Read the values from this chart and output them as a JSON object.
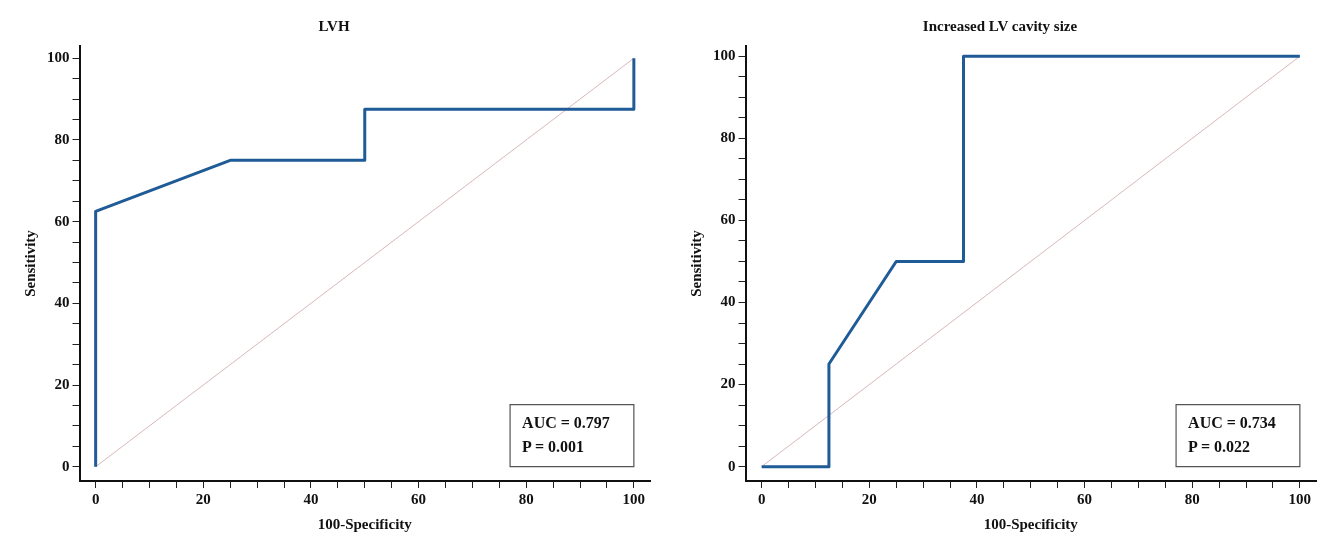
{
  "chart_data": [
    {
      "type": "line",
      "title": "LVH",
      "xlabel": "100-Specificity",
      "ylabel": "Sensitivity",
      "marker": "none",
      "line_style": "solid",
      "grid": false,
      "legend": false,
      "xlim": [
        -3,
        103
      ],
      "ylim": [
        -3.5,
        103
      ],
      "xticks": [
        0,
        {
          "value": 5,
          "label": null
        },
        {
          "value": 10,
          "label": null
        },
        {
          "value": 15,
          "label": null
        },
        20,
        {
          "value": 25,
          "label": null
        },
        {
          "value": 30,
          "label": null
        },
        {
          "value": 35,
          "label": null
        },
        40,
        {
          "value": 45,
          "label": null
        },
        {
          "value": 50,
          "label": null
        },
        {
          "value": 55,
          "label": null
        },
        60,
        {
          "value": 65,
          "label": null
        },
        {
          "value": 70,
          "label": null
        },
        {
          "value": 75,
          "label": null
        },
        80,
        {
          "value": 85,
          "label": null
        },
        {
          "value": 90,
          "label": null
        },
        {
          "value": 95,
          "label": null
        },
        100
      ],
      "yticks": [
        0,
        {
          "value": 5,
          "label": null
        },
        {
          "value": 10,
          "label": null
        },
        {
          "value": 15,
          "label": null
        },
        20,
        {
          "value": 25,
          "label": null
        },
        {
          "value": 30,
          "label": null
        },
        {
          "value": 35,
          "label": null
        },
        40,
        {
          "value": 45,
          "label": null
        },
        {
          "value": 50,
          "label": null
        },
        {
          "value": 55,
          "label": null
        },
        60,
        {
          "value": 65,
          "label": null
        },
        {
          "value": 70,
          "label": null
        },
        {
          "value": 75,
          "label": null
        },
        80,
        {
          "value": 85,
          "label": null
        },
        {
          "value": 90,
          "label": null
        },
        {
          "value": 95,
          "label": null
        },
        100
      ],
      "series": [
        {
          "color": "#1f5b96",
          "x": [
            0,
            0,
            25,
            50,
            50,
            100,
            100
          ],
          "values": [
            0,
            62.5,
            75,
            75,
            87.5,
            87.5,
            100
          ]
        },
        {
          "color": "#d9b8b8",
          "x": [
            0,
            100
          ],
          "values": [
            0,
            100
          ]
        }
      ],
      "annotations": [
        "AUC = 0.797",
        "P = 0.001"
      ]
    },
    {
      "type": "line",
      "title": "Increased LV cavity size",
      "xlabel": "100-Specificity",
      "ylabel": "Sensitivity",
      "marker": "none",
      "line_style": "solid",
      "grid": false,
      "legend": false,
      "xlim": [
        -3,
        103
      ],
      "ylim": [
        -3.5,
        102.5
      ],
      "xticks": [
        0,
        {
          "value": 5,
          "label": null
        },
        {
          "value": 10,
          "label": null
        },
        {
          "value": 15,
          "label": null
        },
        20,
        {
          "value": 25,
          "label": null
        },
        {
          "value": 30,
          "label": null
        },
        {
          "value": 35,
          "label": null
        },
        40,
        {
          "value": 45,
          "label": null
        },
        {
          "value": 50,
          "label": null
        },
        {
          "value": 55,
          "label": null
        },
        60,
        {
          "value": 65,
          "label": null
        },
        {
          "value": 70,
          "label": null
        },
        {
          "value": 75,
          "label": null
        },
        80,
        {
          "value": 85,
          "label": null
        },
        {
          "value": 90,
          "label": null
        },
        {
          "value": 95,
          "label": null
        },
        100
      ],
      "yticks": [
        0,
        {
          "value": 5,
          "label": null
        },
        {
          "value": 10,
          "label": null
        },
        {
          "value": 15,
          "label": null
        },
        20,
        {
          "value": 25,
          "label": null
        },
        {
          "value": 30,
          "label": null
        },
        {
          "value": 35,
          "label": null
        },
        40,
        {
          "value": 45,
          "label": null
        },
        {
          "value": 50,
          "label": null
        },
        {
          "value": 55,
          "label": null
        },
        60,
        {
          "value": 65,
          "label": null
        },
        {
          "value": 70,
          "label": null
        },
        {
          "value": 75,
          "label": null
        },
        80,
        {
          "value": 85,
          "label": null
        },
        {
          "value": 90,
          "label": null
        },
        {
          "value": 95,
          "label": null
        },
        100
      ],
      "series": [
        {
          "color": "#1f5b96",
          "x": [
            0,
            12.5,
            12.5,
            25,
            37.5,
            37.5,
            100
          ],
          "values": [
            0,
            0,
            25,
            50,
            50,
            100,
            100
          ]
        },
        {
          "color": "#d9b8b8",
          "x": [
            0,
            100
          ],
          "values": [
            0,
            100
          ]
        }
      ],
      "annotations": [
        "AUC = 0.734",
        "P = 0.022"
      ]
    }
  ]
}
